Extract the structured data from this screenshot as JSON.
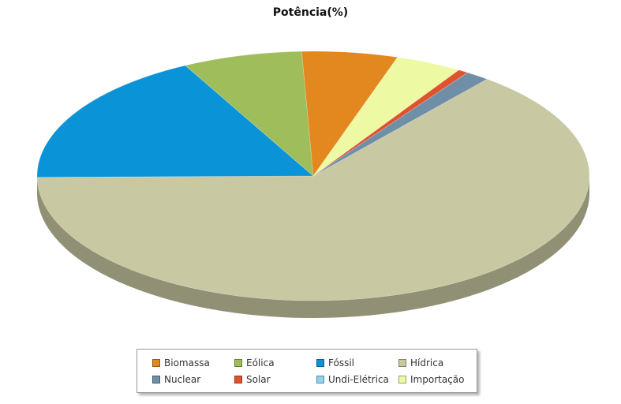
{
  "chart_data": {
    "type": "pie",
    "title": "Potência(%)",
    "three_d": true,
    "legend_position": "bottom",
    "slices": [
      {
        "name": "Hídrica",
        "value": 64.0,
        "color": "#c8c8a2"
      },
      {
        "name": "Fóssil",
        "value": 17.5,
        "color": "#0a93d6"
      },
      {
        "name": "Eólica",
        "value": 7.0,
        "color": "#9fbd5b"
      },
      {
        "name": "Biomassa",
        "value": 5.6,
        "color": "#e3881f"
      },
      {
        "name": "Importação",
        "value": 3.9,
        "color": "#eef9a4"
      },
      {
        "name": "Solar",
        "value": 0.6,
        "color": "#e0522e"
      },
      {
        "name": "Nuclear",
        "value": 1.4,
        "color": "#6f8fa6"
      },
      {
        "name": "Undi-Elétrica",
        "value": 0.0,
        "color": "#8fd3ee"
      }
    ],
    "legend": [
      {
        "name": "Biomassa",
        "color": "#e3881f"
      },
      {
        "name": "Eólica",
        "color": "#9fbd5b"
      },
      {
        "name": "Fóssil",
        "color": "#0a93d6"
      },
      {
        "name": "Hídrica",
        "color": "#c8c8a2"
      },
      {
        "name": "Nuclear",
        "color": "#6f8fa6"
      },
      {
        "name": "Solar",
        "color": "#e0522e"
      },
      {
        "name": "Undi-Elétrica",
        "color": "#8fd3ee"
      },
      {
        "name": "Importação",
        "color": "#eef9a4"
      }
    ]
  }
}
